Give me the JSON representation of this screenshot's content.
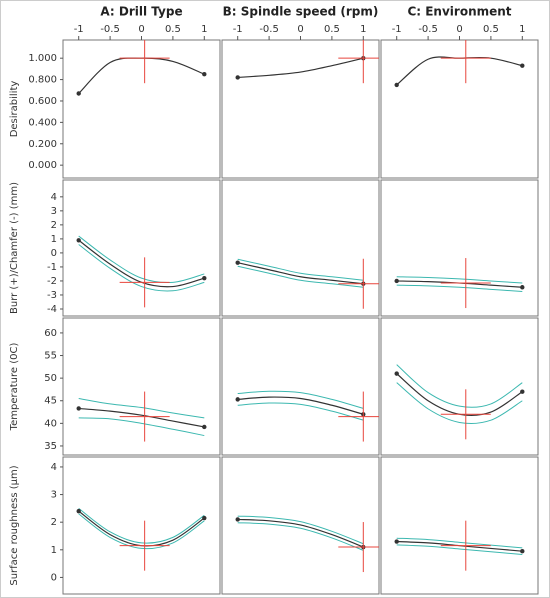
{
  "chart_data": [
    {
      "type": "line",
      "title": "A: Drill Type",
      "ylabel": "Desirability",
      "xlim": [
        -1.25,
        1.25
      ],
      "xticks": [
        -1,
        -0.5,
        0,
        0.5,
        1
      ],
      "ylim": [
        -0.12,
        1.17
      ],
      "yticks": [
        {
          "value": 0,
          "label": "0.000"
        },
        {
          "value": 0.2,
          "label": "0.200"
        },
        {
          "value": 0.4,
          "label": "0.400"
        },
        {
          "value": 0.6,
          "label": "0.600"
        },
        {
          "value": 0.8,
          "label": "0.800"
        },
        {
          "value": 1,
          "label": "1.000"
        }
      ],
      "x": [
        -1,
        -0.5,
        0,
        0.5,
        1
      ],
      "series": [
        {
          "color": "#333333",
          "values": [
            0.67,
            0.96,
            1.0,
            0.97,
            0.85
          ]
        }
      ],
      "current": {
        "x": 0.05,
        "y": 1.0
      },
      "current_color": "#e8453c"
    },
    {
      "type": "line",
      "title": "B: Spindle speed (rpm)",
      "xlim": [
        -1.25,
        1.25
      ],
      "xticks": [
        -1,
        -0.5,
        0,
        0.5,
        1
      ],
      "ylim": [
        -0.12,
        1.17
      ],
      "x": [
        -1,
        -0.5,
        0,
        0.5,
        1
      ],
      "series": [
        {
          "color": "#333333",
          "values": [
            0.82,
            0.84,
            0.87,
            0.93,
            1.0
          ]
        }
      ],
      "current": {
        "x": 1,
        "y": 1.0
      },
      "current_color": "#e8453c"
    },
    {
      "type": "line",
      "title": "C: Environment",
      "xlim": [
        -1.25,
        1.25
      ],
      "xticks": [
        -1,
        -0.5,
        0,
        0.5,
        1
      ],
      "ylim": [
        -0.12,
        1.17
      ],
      "x": [
        -1,
        -0.5,
        0,
        0.5,
        1
      ],
      "series": [
        {
          "color": "#333333",
          "values": [
            0.75,
            0.99,
            1.0,
            1.0,
            0.93
          ]
        }
      ],
      "current": {
        "x": 0.1,
        "y": 1.0
      },
      "current_color": "#e8453c"
    },
    {
      "type": "line",
      "ylabel": "Burr (+)/Chamfer (-)  (mm)",
      "xlim": [
        -1.25,
        1.25
      ],
      "ylim": [
        -4.5,
        5.2
      ],
      "yticks": [
        -4,
        -3,
        -2,
        -1,
        0,
        1,
        2,
        3,
        4
      ],
      "x": [
        -1,
        -0.5,
        0,
        0.5,
        1
      ],
      "series": [
        {
          "color": "#333333",
          "values": [
            0.9,
            -0.8,
            -2.1,
            -2.4,
            -1.8
          ]
        },
        {
          "color": "#3cb8b0",
          "values": [
            1.2,
            -0.5,
            -1.8,
            -2.1,
            -1.5
          ]
        },
        {
          "color": "#3cb8b0",
          "values": [
            0.6,
            -1.1,
            -2.4,
            -2.7,
            -2.1
          ]
        }
      ],
      "current": {
        "x": 0.05,
        "y": -2.1
      },
      "current_color": "#e8453c"
    },
    {
      "type": "line",
      "xlim": [
        -1.25,
        1.25
      ],
      "ylim": [
        -4.5,
        5.2
      ],
      "x": [
        -1,
        -0.5,
        0,
        0.5,
        1
      ],
      "series": [
        {
          "color": "#333333",
          "values": [
            -0.7,
            -1.2,
            -1.7,
            -1.95,
            -2.2
          ]
        },
        {
          "color": "#3cb8b0",
          "values": [
            -0.45,
            -0.95,
            -1.45,
            -1.7,
            -1.95
          ]
        },
        {
          "color": "#3cb8b0",
          "values": [
            -0.95,
            -1.45,
            -1.95,
            -2.2,
            -2.45
          ]
        }
      ],
      "current": {
        "x": 1,
        "y": -2.2
      },
      "current_color": "#e8453c"
    },
    {
      "type": "line",
      "xlim": [
        -1.25,
        1.25
      ],
      "ylim": [
        -4.5,
        5.2
      ],
      "x": [
        -1,
        -0.5,
        0,
        0.5,
        1
      ],
      "series": [
        {
          "color": "#333333",
          "values": [
            -2.0,
            -2.05,
            -2.15,
            -2.3,
            -2.45
          ]
        },
        {
          "color": "#3cb8b0",
          "values": [
            -1.7,
            -1.75,
            -1.85,
            -2.0,
            -2.15
          ]
        },
        {
          "color": "#3cb8b0",
          "values": [
            -2.3,
            -2.35,
            -2.45,
            -2.6,
            -2.75
          ]
        }
      ],
      "current": {
        "x": 0.1,
        "y": -2.15
      },
      "current_color": "#e8453c"
    },
    {
      "type": "line",
      "ylabel": "Temperature (0C)",
      "xlim": [
        -1.25,
        1.25
      ],
      "ylim": [
        33,
        63.3
      ],
      "yticks": [
        35,
        40,
        45,
        50,
        55,
        60
      ],
      "x": [
        -1,
        -0.5,
        0,
        0.5,
        1
      ],
      "series": [
        {
          "color": "#333333",
          "values": [
            43.3,
            42.7,
            41.8,
            40.5,
            39.2
          ]
        },
        {
          "color": "#3cb8b0",
          "values": [
            45.5,
            44.3,
            43.5,
            42.3,
            41.2
          ]
        },
        {
          "color": "#3cb8b0",
          "values": [
            41.2,
            41.0,
            40.0,
            38.7,
            37.3
          ]
        }
      ],
      "current": {
        "x": 0.05,
        "y": 41.5
      },
      "current_color": "#e8453c"
    },
    {
      "type": "line",
      "xlim": [
        -1.25,
        1.25
      ],
      "ylim": [
        33,
        63.3
      ],
      "x": [
        -1,
        -0.5,
        0,
        0.5,
        1
      ],
      "series": [
        {
          "color": "#333333",
          "values": [
            45.3,
            45.8,
            45.5,
            44.0,
            42.0
          ]
        },
        {
          "color": "#3cb8b0",
          "values": [
            46.6,
            47.1,
            46.8,
            45.3,
            43.3
          ]
        },
        {
          "color": "#3cb8b0",
          "values": [
            44.0,
            44.5,
            44.2,
            42.7,
            40.7
          ]
        }
      ],
      "current": {
        "x": 1,
        "y": 41.5
      },
      "current_color": "#e8453c"
    },
    {
      "type": "line",
      "xlim": [
        -1.25,
        1.25
      ],
      "ylim": [
        33,
        63.3
      ],
      "x": [
        -1,
        -0.5,
        0,
        0.5,
        1
      ],
      "series": [
        {
          "color": "#333333",
          "values": [
            51.0,
            45.0,
            42.0,
            42.5,
            47.0
          ]
        },
        {
          "color": "#3cb8b0",
          "values": [
            53.0,
            46.8,
            43.8,
            44.3,
            49.0
          ]
        },
        {
          "color": "#3cb8b0",
          "values": [
            49.0,
            43.2,
            40.2,
            40.7,
            45.0
          ]
        }
      ],
      "current": {
        "x": 0.1,
        "y": 42.0
      },
      "current_color": "#e8453c"
    },
    {
      "type": "line",
      "ylabel": "Surface roughness (µm)",
      "xlim": [
        -1.25,
        1.25
      ],
      "ylim": [
        -0.6,
        4.36
      ],
      "yticks": [
        0,
        1,
        2,
        3,
        4
      ],
      "x": [
        -1,
        -0.5,
        0,
        0.5,
        1
      ],
      "series": [
        {
          "color": "#333333",
          "values": [
            2.4,
            1.55,
            1.15,
            1.35,
            2.15
          ]
        },
        {
          "color": "#3cb8b0",
          "values": [
            2.5,
            1.65,
            1.25,
            1.45,
            2.25
          ]
        },
        {
          "color": "#3cb8b0",
          "values": [
            2.3,
            1.45,
            1.05,
            1.25,
            2.05
          ]
        }
      ],
      "current": {
        "x": 0.05,
        "y": 1.15
      },
      "current_color": "#e8453c"
    },
    {
      "type": "line",
      "xlim": [
        -1.25,
        1.25
      ],
      "ylim": [
        -0.6,
        4.36
      ],
      "x": [
        -1,
        -0.5,
        0,
        0.5,
        1
      ],
      "series": [
        {
          "color": "#333333",
          "values": [
            2.1,
            2.05,
            1.9,
            1.55,
            1.1
          ]
        },
        {
          "color": "#3cb8b0",
          "values": [
            2.22,
            2.17,
            2.02,
            1.67,
            1.22
          ]
        },
        {
          "color": "#3cb8b0",
          "values": [
            1.98,
            1.93,
            1.78,
            1.43,
            0.98
          ]
        }
      ],
      "current": {
        "x": 1,
        "y": 1.1
      },
      "current_color": "#e8453c"
    },
    {
      "type": "line",
      "xlim": [
        -1.25,
        1.25
      ],
      "ylim": [
        -0.6,
        4.36
      ],
      "x": [
        -1,
        -0.5,
        0,
        0.5,
        1
      ],
      "series": [
        {
          "color": "#333333",
          "values": [
            1.3,
            1.25,
            1.15,
            1.05,
            0.95
          ]
        },
        {
          "color": "#3cb8b0",
          "values": [
            1.42,
            1.37,
            1.27,
            1.17,
            1.07
          ]
        },
        {
          "color": "#3cb8b0",
          "values": [
            1.18,
            1.13,
            1.03,
            0.93,
            0.83
          ]
        }
      ],
      "current": {
        "x": 0.1,
        "y": 1.15
      },
      "current_color": "#e8453c"
    }
  ]
}
